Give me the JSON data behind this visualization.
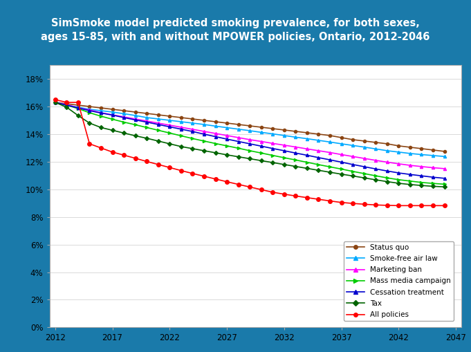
{
  "title_line1": "SimSmoke model predicted smoking prevalence, for both sexes,",
  "title_line2": "ages 15-85, with and without MPOWER policies, Ontario, 2012-2046",
  "title_bg": "#1a6496",
  "title_color": "white",
  "bg_color": "#1a7aaa",
  "plot_bg": "white",
  "border_color": "#aaaaaa",
  "years": [
    2012,
    2013,
    2014,
    2015,
    2016,
    2017,
    2018,
    2019,
    2020,
    2021,
    2022,
    2023,
    2024,
    2025,
    2026,
    2027,
    2028,
    2029,
    2030,
    2031,
    2032,
    2033,
    2034,
    2035,
    2036,
    2037,
    2038,
    2039,
    2040,
    2041,
    2042,
    2043,
    2044,
    2045,
    2046
  ],
  "series": [
    {
      "label": "Status quo",
      "color": "#8B4513",
      "marker": "o",
      "markersize": 3,
      "values": [
        0.163,
        0.162,
        0.161,
        0.16,
        0.159,
        0.158,
        0.157,
        0.156,
        0.155,
        0.154,
        0.153,
        0.152,
        0.151,
        0.15,
        0.149,
        0.148,
        0.147,
        0.146,
        0.145,
        0.144,
        0.143,
        0.142,
        0.141,
        0.14,
        0.139,
        0.1375,
        0.136,
        0.135,
        0.134,
        0.133,
        0.1315,
        0.1305,
        0.1295,
        0.1285,
        0.1275
      ]
    },
    {
      "label": "Smoke-free air law",
      "color": "#00AAFF",
      "marker": "^",
      "markersize": 3,
      "values": [
        0.163,
        0.161,
        0.1595,
        0.158,
        0.157,
        0.156,
        0.1548,
        0.1535,
        0.152,
        0.151,
        0.15,
        0.149,
        0.148,
        0.147,
        0.1458,
        0.1447,
        0.1436,
        0.1425,
        0.1413,
        0.1402,
        0.139,
        0.1378,
        0.1367,
        0.1355,
        0.1343,
        0.133,
        0.1318,
        0.1306,
        0.1293,
        0.128,
        0.127,
        0.126,
        0.1252,
        0.1245,
        0.1238
      ]
    },
    {
      "label": "Marketing ban",
      "color": "#FF00FF",
      "marker": "^",
      "markersize": 3,
      "values": [
        0.163,
        0.1615,
        0.159,
        0.1575,
        0.1555,
        0.154,
        0.1525,
        0.151,
        0.1495,
        0.148,
        0.1465,
        0.145,
        0.1435,
        0.142,
        0.1405,
        0.139,
        0.1375,
        0.136,
        0.1347,
        0.1333,
        0.132,
        0.1307,
        0.1293,
        0.128,
        0.1267,
        0.1252,
        0.1238,
        0.1224,
        0.121,
        0.1197,
        0.1185,
        0.1174,
        0.1165,
        0.1157,
        0.115
      ]
    },
    {
      "label": "Mass media campaign",
      "color": "#00CC00",
      "marker": ">",
      "markersize": 3,
      "values": [
        0.163,
        0.161,
        0.1585,
        0.1555,
        0.153,
        0.1508,
        0.1487,
        0.1468,
        0.1448,
        0.1428,
        0.1408,
        0.1388,
        0.1368,
        0.135,
        0.1332,
        0.1315,
        0.1298,
        0.128,
        0.1263,
        0.1246,
        0.1229,
        0.1213,
        0.1196,
        0.1179,
        0.1163,
        0.1147,
        0.113,
        0.1114,
        0.1098,
        0.1083,
        0.107,
        0.106,
        0.105,
        0.1043,
        0.1037
      ]
    },
    {
      "label": "Cessation treatment",
      "color": "#0000CD",
      "marker": "^",
      "markersize": 3,
      "values": [
        0.163,
        0.161,
        0.159,
        0.157,
        0.1553,
        0.1538,
        0.152,
        0.1503,
        0.1487,
        0.147,
        0.1453,
        0.1436,
        0.1419,
        0.14,
        0.1382,
        0.1364,
        0.1347,
        0.133,
        0.1313,
        0.1296,
        0.128,
        0.1263,
        0.1247,
        0.123,
        0.1214,
        0.1197,
        0.118,
        0.1164,
        0.1148,
        0.1133,
        0.1119,
        0.1108,
        0.1098,
        0.1088,
        0.108
      ]
    },
    {
      "label": "Tax",
      "color": "#006400",
      "marker": "D",
      "markersize": 3,
      "values": [
        0.163,
        0.1595,
        0.1535,
        0.148,
        0.1448,
        0.1428,
        0.1408,
        0.1388,
        0.137,
        0.135,
        0.133,
        0.131,
        0.1295,
        0.128,
        0.1265,
        0.125,
        0.1236,
        0.1222,
        0.1208,
        0.1194,
        0.118,
        0.1166,
        0.1152,
        0.1138,
        0.1124,
        0.111,
        0.1097,
        0.1083,
        0.1069,
        0.1056,
        0.1044,
        0.1035,
        0.1028,
        0.1022,
        0.1018
      ]
    },
    {
      "label": "All policies",
      "color": "#FF0000",
      "marker": "o",
      "markersize": 4,
      "values": [
        0.165,
        0.163,
        0.163,
        0.133,
        0.13,
        0.127,
        0.1248,
        0.1225,
        0.1202,
        0.118,
        0.1158,
        0.1136,
        0.1115,
        0.1095,
        0.1075,
        0.1055,
        0.1036,
        0.1017,
        0.0998,
        0.0979,
        0.0965,
        0.0952,
        0.094,
        0.0928,
        0.0916,
        0.0905,
        0.0898,
        0.0892,
        0.0887,
        0.0884,
        0.0882,
        0.0882,
        0.0882,
        0.0882,
        0.0882
      ]
    }
  ],
  "xlim": [
    2011.5,
    2047.5
  ],
  "ylim": [
    0.0,
    0.19
  ],
  "xticks": [
    2012,
    2017,
    2022,
    2027,
    2032,
    2037,
    2042,
    2047
  ],
  "yticks": [
    0.0,
    0.02,
    0.04,
    0.06,
    0.08,
    0.1,
    0.12,
    0.14,
    0.16,
    0.18
  ]
}
